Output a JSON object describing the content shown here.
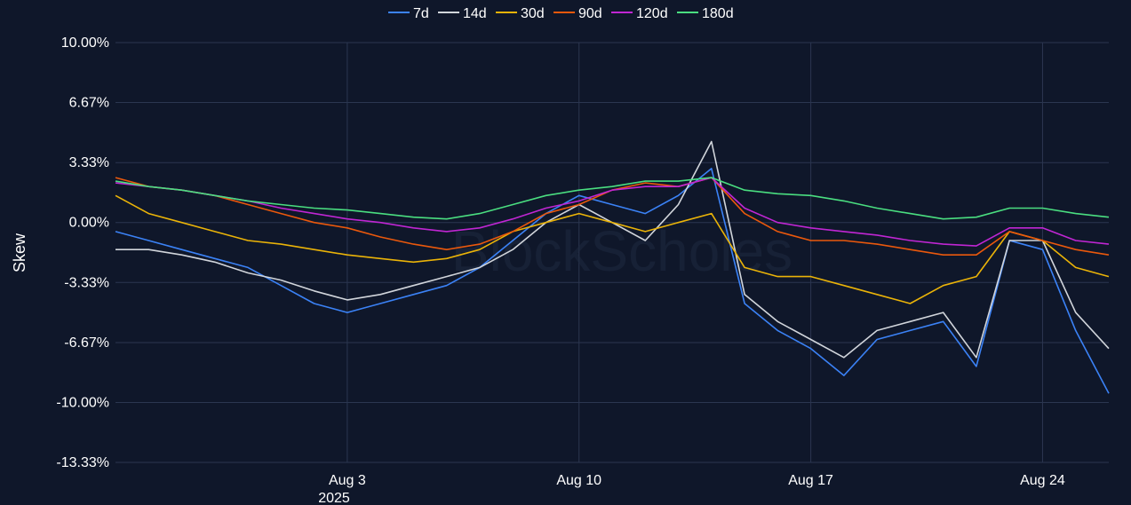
{
  "chart_data": {
    "type": "line",
    "title": "",
    "xlabel": "",
    "ylabel": "Skew",
    "watermark": "BlockScholes",
    "x_range": [
      "2025-07-27",
      "2025-08-26"
    ],
    "ylim": [
      -13.33,
      10.0
    ],
    "y_ticks": [
      10.0,
      6.67,
      3.33,
      0.0,
      -3.33,
      -6.67,
      -10.0,
      -13.33
    ],
    "y_tick_labels": [
      "10.00%",
      "6.67%",
      "3.33%",
      "0.00%",
      "-3.33%",
      "-6.67%",
      "-10.00%",
      "-13.33%"
    ],
    "x_ticks": [
      "2025-08-03",
      "2025-08-10",
      "2025-08-17",
      "2025-08-24"
    ],
    "x_tick_labels": [
      "Aug 3",
      "Aug 10",
      "Aug 17",
      "Aug 24"
    ],
    "x_tick_sublabel": "2025",
    "grid": true,
    "legend": "top-center",
    "x": [
      "2025-07-27",
      "2025-07-28",
      "2025-07-29",
      "2025-07-30",
      "2025-07-31",
      "2025-08-01",
      "2025-08-02",
      "2025-08-03",
      "2025-08-04",
      "2025-08-05",
      "2025-08-06",
      "2025-08-07",
      "2025-08-08",
      "2025-08-09",
      "2025-08-10",
      "2025-08-11",
      "2025-08-12",
      "2025-08-13",
      "2025-08-14",
      "2025-08-15",
      "2025-08-16",
      "2025-08-17",
      "2025-08-18",
      "2025-08-19",
      "2025-08-20",
      "2025-08-21",
      "2025-08-22",
      "2025-08-23",
      "2025-08-24",
      "2025-08-25",
      "2025-08-26"
    ],
    "series": [
      {
        "name": "7d",
        "color": "#3b82f6",
        "values": [
          -0.5,
          -1.0,
          -1.5,
          -2.0,
          -2.5,
          -3.5,
          -4.5,
          -5.0,
          -4.5,
          -4.0,
          -3.5,
          -2.5,
          -1.0,
          0.5,
          1.5,
          1.0,
          0.5,
          1.5,
          3.0,
          -4.5,
          -6.0,
          -7.0,
          -8.5,
          -6.5,
          -6.0,
          -5.5,
          -8.0,
          -1.0,
          -1.5,
          -6.0,
          -9.5
        ]
      },
      {
        "name": "14d",
        "color": "#d1d5db",
        "values": [
          -1.5,
          -1.5,
          -1.8,
          -2.2,
          -2.8,
          -3.2,
          -3.8,
          -4.3,
          -4.0,
          -3.5,
          -3.0,
          -2.5,
          -1.5,
          0.0,
          1.0,
          0.0,
          -1.0,
          1.0,
          4.5,
          -4.0,
          -5.5,
          -6.5,
          -7.5,
          -6.0,
          -5.5,
          -5.0,
          -7.5,
          -1.0,
          -1.0,
          -5.0,
          -7.0
        ]
      },
      {
        "name": "30d",
        "color": "#eab308",
        "values": [
          1.5,
          0.5,
          0.0,
          -0.5,
          -1.0,
          -1.2,
          -1.5,
          -1.8,
          -2.0,
          -2.2,
          -2.0,
          -1.5,
          -0.5,
          0.0,
          0.5,
          0.0,
          -0.5,
          0.0,
          0.5,
          -2.5,
          -3.0,
          -3.0,
          -3.5,
          -4.0,
          -4.5,
          -3.5,
          -3.0,
          -0.5,
          -1.0,
          -2.5,
          -3.0
        ]
      },
      {
        "name": "90d",
        "color": "#ea580c",
        "values": [
          2.5,
          2.0,
          1.8,
          1.5,
          1.0,
          0.5,
          0.0,
          -0.3,
          -0.8,
          -1.2,
          -1.5,
          -1.2,
          -0.5,
          0.5,
          1.0,
          1.8,
          2.2,
          2.0,
          2.5,
          0.5,
          -0.5,
          -1.0,
          -1.0,
          -1.2,
          -1.5,
          -1.8,
          -1.8,
          -0.5,
          -1.0,
          -1.5,
          -1.8
        ]
      },
      {
        "name": "120d",
        "color": "#c026d3",
        "values": [
          2.2,
          2.0,
          1.8,
          1.5,
          1.2,
          0.8,
          0.5,
          0.2,
          0.0,
          -0.3,
          -0.5,
          -0.3,
          0.2,
          0.8,
          1.2,
          1.8,
          2.0,
          2.0,
          2.5,
          0.8,
          0.0,
          -0.3,
          -0.5,
          -0.7,
          -1.0,
          -1.2,
          -1.3,
          -0.3,
          -0.3,
          -1.0,
          -1.2
        ]
      },
      {
        "name": "180d",
        "color": "#4ade80",
        "values": [
          2.3,
          2.0,
          1.8,
          1.5,
          1.2,
          1.0,
          0.8,
          0.7,
          0.5,
          0.3,
          0.2,
          0.5,
          1.0,
          1.5,
          1.8,
          2.0,
          2.3,
          2.3,
          2.5,
          1.8,
          1.6,
          1.5,
          1.2,
          0.8,
          0.5,
          0.2,
          0.3,
          0.8,
          0.8,
          0.5,
          0.3
        ]
      }
    ]
  }
}
